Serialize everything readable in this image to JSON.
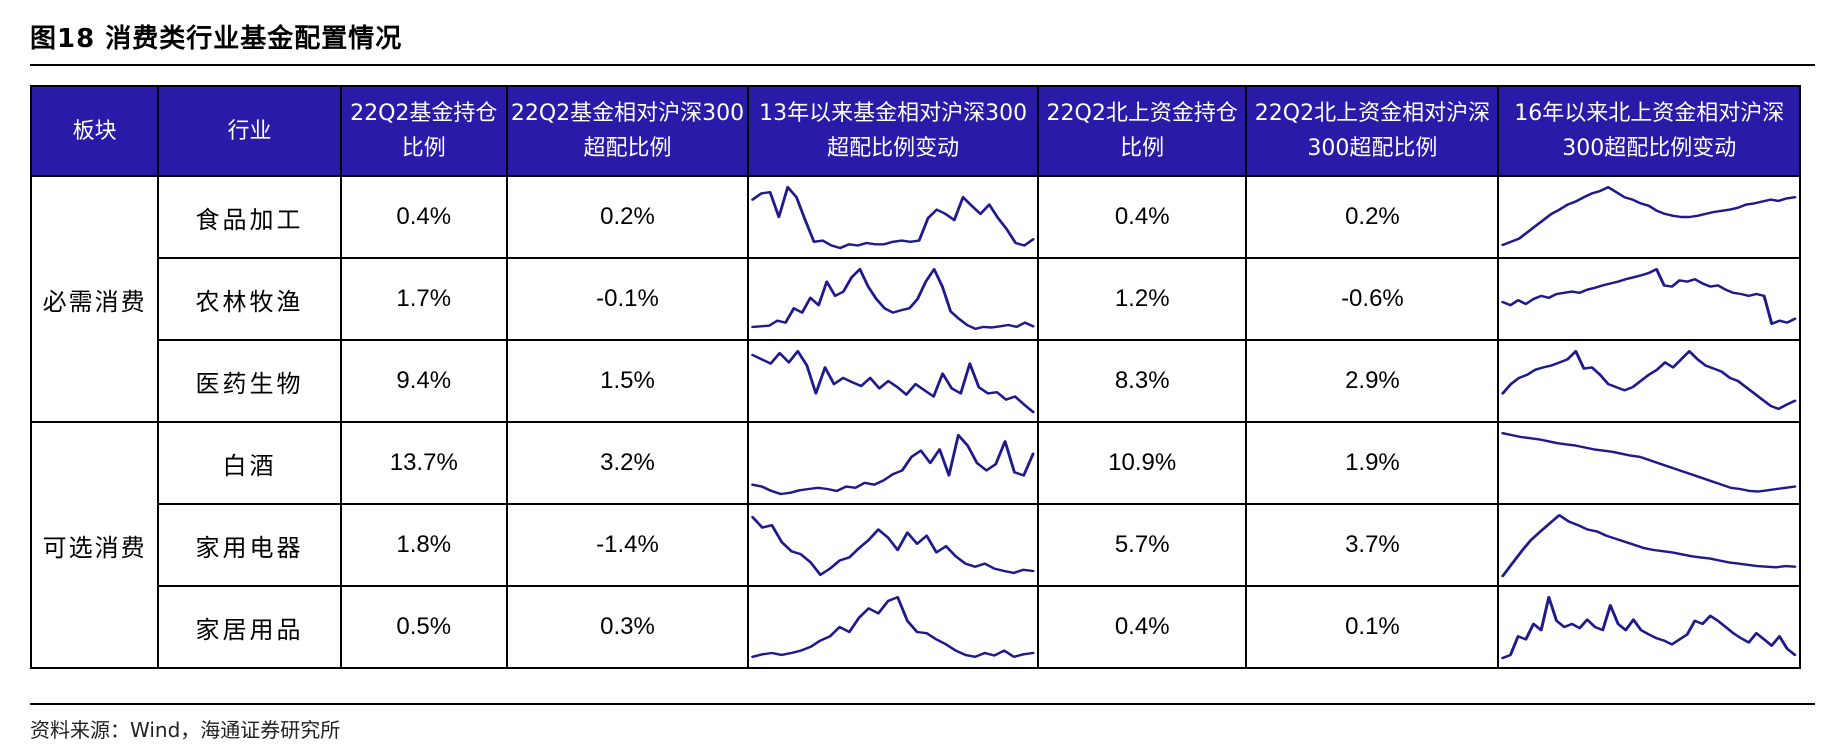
{
  "title": "图18 消费类行业基金配置情况",
  "source": "资料来源：Wind，海通证券研究所",
  "headers": [
    "板块",
    "行业",
    "22Q2基金持仓比例",
    "22Q2基金相对沪深300超配比例",
    "13年以来基金相对沪深300超配比例变动",
    "22Q2北上资金持仓比例",
    "22Q2北上资金相对沪深300超配比例",
    "16年以来北上资金相对沪深300超配比例变动"
  ],
  "groups": [
    "必需消费",
    "可选消费"
  ],
  "rows": [
    {
      "industry": "食品加工",
      "fund_hold": "0.4%",
      "fund_over": "0.2%",
      "north_hold": "0.4%",
      "north_over": "0.2%",
      "fund_trend": [
        0.78,
        0.88,
        0.9,
        0.5,
        0.98,
        0.82,
        0.45,
        0.1,
        0.12,
        0.04,
        0.0,
        0.06,
        0.04,
        0.08,
        0.06,
        0.06,
        0.1,
        0.12,
        0.1,
        0.12,
        0.48,
        0.62,
        0.55,
        0.45,
        0.82,
        0.68,
        0.55,
        0.7,
        0.48,
        0.3,
        0.08,
        0.04,
        0.14
      ],
      "north_trend": [
        0.05,
        0.1,
        0.15,
        0.25,
        0.35,
        0.45,
        0.55,
        0.62,
        0.7,
        0.75,
        0.82,
        0.88,
        0.92,
        0.98,
        0.9,
        0.82,
        0.78,
        0.72,
        0.68,
        0.6,
        0.55,
        0.52,
        0.5,
        0.5,
        0.52,
        0.55,
        0.58,
        0.6,
        0.62,
        0.65,
        0.7,
        0.72,
        0.75,
        0.78,
        0.76,
        0.8,
        0.82
      ]
    },
    {
      "industry": "农林牧渔",
      "fund_hold": "1.7%",
      "fund_over": "-0.1%",
      "north_hold": "1.2%",
      "north_over": "-0.6%",
      "fund_trend": [
        0.05,
        0.06,
        0.07,
        0.15,
        0.12,
        0.35,
        0.28,
        0.52,
        0.4,
        0.78,
        0.55,
        0.62,
        0.85,
        0.98,
        0.7,
        0.5,
        0.35,
        0.28,
        0.32,
        0.35,
        0.5,
        0.78,
        0.98,
        0.7,
        0.3,
        0.18,
        0.08,
        0.02,
        0.05,
        0.04,
        0.06,
        0.08,
        0.05,
        0.12,
        0.06
      ],
      "north_trend": [
        0.45,
        0.4,
        0.48,
        0.42,
        0.5,
        0.55,
        0.52,
        0.58,
        0.6,
        0.62,
        0.6,
        0.65,
        0.68,
        0.72,
        0.75,
        0.78,
        0.82,
        0.85,
        0.88,
        0.92,
        0.98,
        0.72,
        0.7,
        0.8,
        0.78,
        0.82,
        0.75,
        0.7,
        0.72,
        0.65,
        0.6,
        0.58,
        0.55,
        0.58,
        0.55,
        0.1,
        0.15,
        0.12,
        0.18
      ]
    },
    {
      "industry": "医药生物",
      "fund_hold": "9.4%",
      "fund_over": "1.5%",
      "north_hold": "8.3%",
      "north_over": "2.9%",
      "fund_trend": [
        0.92,
        0.85,
        0.78,
        0.95,
        0.8,
        0.98,
        0.75,
        0.3,
        0.72,
        0.45,
        0.55,
        0.48,
        0.42,
        0.55,
        0.38,
        0.5,
        0.4,
        0.28,
        0.45,
        0.35,
        0.25,
        0.62,
        0.38,
        0.3,
        0.78,
        0.4,
        0.3,
        0.32,
        0.2,
        0.25,
        0.12,
        0.0
      ],
      "north_trend": [
        0.3,
        0.45,
        0.55,
        0.6,
        0.68,
        0.72,
        0.75,
        0.8,
        0.85,
        0.98,
        0.7,
        0.72,
        0.6,
        0.45,
        0.4,
        0.35,
        0.4,
        0.5,
        0.6,
        0.68,
        0.8,
        0.72,
        0.85,
        0.98,
        0.85,
        0.75,
        0.7,
        0.65,
        0.55,
        0.5,
        0.4,
        0.3,
        0.2,
        0.1,
        0.05,
        0.12,
        0.18
      ]
    },
    {
      "industry": "白酒",
      "fund_hold": "13.7%",
      "fund_over": "3.2%",
      "north_hold": "10.9%",
      "north_over": "1.9%",
      "fund_trend": [
        0.15,
        0.12,
        0.05,
        0.0,
        0.02,
        0.06,
        0.08,
        0.1,
        0.08,
        0.05,
        0.12,
        0.1,
        0.18,
        0.15,
        0.22,
        0.32,
        0.38,
        0.6,
        0.7,
        0.5,
        0.72,
        0.3,
        0.95,
        0.78,
        0.5,
        0.38,
        0.48,
        0.85,
        0.35,
        0.3,
        0.65
      ],
      "north_trend": [
        0.98,
        0.95,
        0.92,
        0.9,
        0.88,
        0.85,
        0.82,
        0.8,
        0.78,
        0.75,
        0.72,
        0.7,
        0.68,
        0.65,
        0.62,
        0.6,
        0.55,
        0.5,
        0.45,
        0.4,
        0.35,
        0.3,
        0.25,
        0.2,
        0.15,
        0.1,
        0.08,
        0.05,
        0.04,
        0.06,
        0.08,
        0.1,
        0.12
      ]
    },
    {
      "industry": "家用电器",
      "fund_hold": "1.8%",
      "fund_over": "-1.4%",
      "north_hold": "5.7%",
      "north_over": "3.7%",
      "fund_trend": [
        0.95,
        0.78,
        0.82,
        0.55,
        0.4,
        0.35,
        0.22,
        0.02,
        0.12,
        0.25,
        0.3,
        0.45,
        0.58,
        0.75,
        0.62,
        0.42,
        0.7,
        0.52,
        0.65,
        0.38,
        0.48,
        0.32,
        0.2,
        0.15,
        0.2,
        0.12,
        0.08,
        0.05,
        0.1,
        0.08
      ],
      "north_trend": [
        0.0,
        0.2,
        0.4,
        0.58,
        0.72,
        0.85,
        0.98,
        0.88,
        0.82,
        0.75,
        0.72,
        0.65,
        0.6,
        0.55,
        0.5,
        0.45,
        0.42,
        0.4,
        0.38,
        0.35,
        0.32,
        0.3,
        0.28,
        0.25,
        0.22,
        0.2,
        0.18,
        0.16,
        0.15,
        0.14,
        0.16,
        0.15
      ]
    },
    {
      "industry": "家居用品",
      "fund_hold": "0.5%",
      "fund_over": "0.3%",
      "north_hold": "0.4%",
      "north_over": "0.1%",
      "fund_trend": [
        0.02,
        0.06,
        0.08,
        0.05,
        0.08,
        0.12,
        0.18,
        0.28,
        0.35,
        0.5,
        0.42,
        0.65,
        0.8,
        0.72,
        0.92,
        0.98,
        0.6,
        0.42,
        0.4,
        0.3,
        0.22,
        0.12,
        0.05,
        0.02,
        0.08,
        0.04,
        0.12,
        0.02,
        0.06,
        0.08
      ],
      "north_trend": [
        0.0,
        0.05,
        0.35,
        0.3,
        0.55,
        0.45,
        0.98,
        0.6,
        0.5,
        0.55,
        0.48,
        0.62,
        0.5,
        0.45,
        0.85,
        0.55,
        0.45,
        0.62,
        0.45,
        0.38,
        0.32,
        0.28,
        0.22,
        0.3,
        0.38,
        0.6,
        0.55,
        0.68,
        0.6,
        0.5,
        0.4,
        0.32,
        0.25,
        0.4,
        0.3,
        0.2,
        0.35,
        0.15,
        0.05
      ]
    }
  ]
}
